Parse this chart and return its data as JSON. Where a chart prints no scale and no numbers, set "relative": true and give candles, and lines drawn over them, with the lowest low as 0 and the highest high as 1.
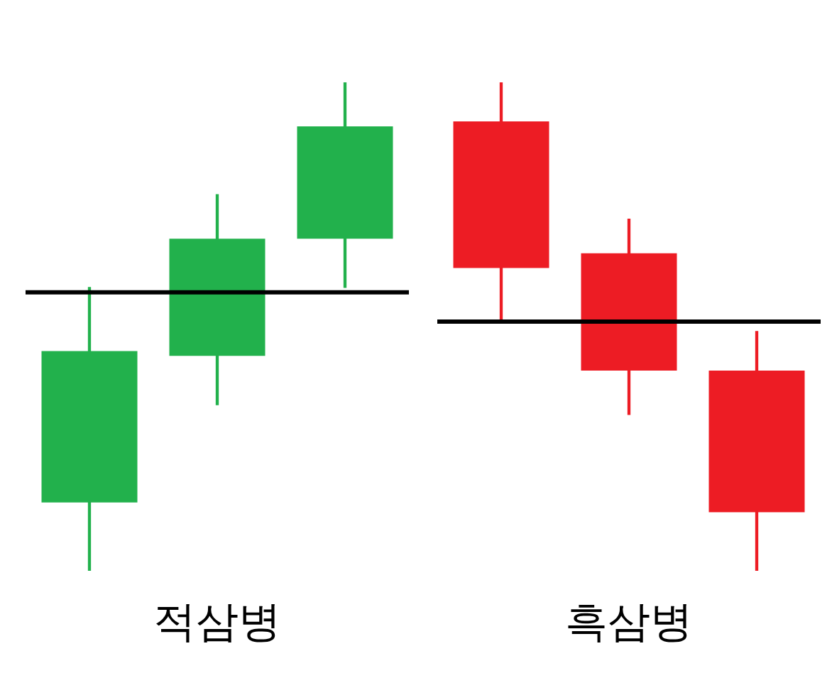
{
  "chart_data": [
    {
      "type": "candlestick",
      "title": "적삼병",
      "relative": true,
      "categories": [
        null,
        null,
        null
      ],
      "colors": [
        "#22b14c",
        "#22b14c",
        "#22b14c"
      ],
      "ohlc": [
        [
          0.14,
          0.58,
          0,
          0.45
        ],
        [
          0.44,
          0.77,
          0.34,
          0.68
        ],
        [
          0.68,
          1,
          0.58,
          0.91
        ]
      ],
      "ref_lines": [
        {
          "axis": "y",
          "value": 0.57,
          "color": "#000000"
        }
      ],
      "legend": false,
      "tick_labels": false
    },
    {
      "type": "candlestick",
      "title": "흑삼병",
      "relative": true,
      "categories": [
        null,
        null,
        null
      ],
      "colors": [
        "#ed1c24",
        "#ed1c24",
        "#ed1c24"
      ],
      "ohlc": [
        [
          0.92,
          1,
          0.51,
          0.62
        ],
        [
          0.65,
          0.72,
          0.32,
          0.41
        ],
        [
          0.41,
          0.49,
          0,
          0.12
        ]
      ],
      "ref_lines": [
        {
          "axis": "y",
          "value": 0.51,
          "color": "#000000"
        }
      ],
      "legend": false,
      "tick_labels": false
    }
  ]
}
